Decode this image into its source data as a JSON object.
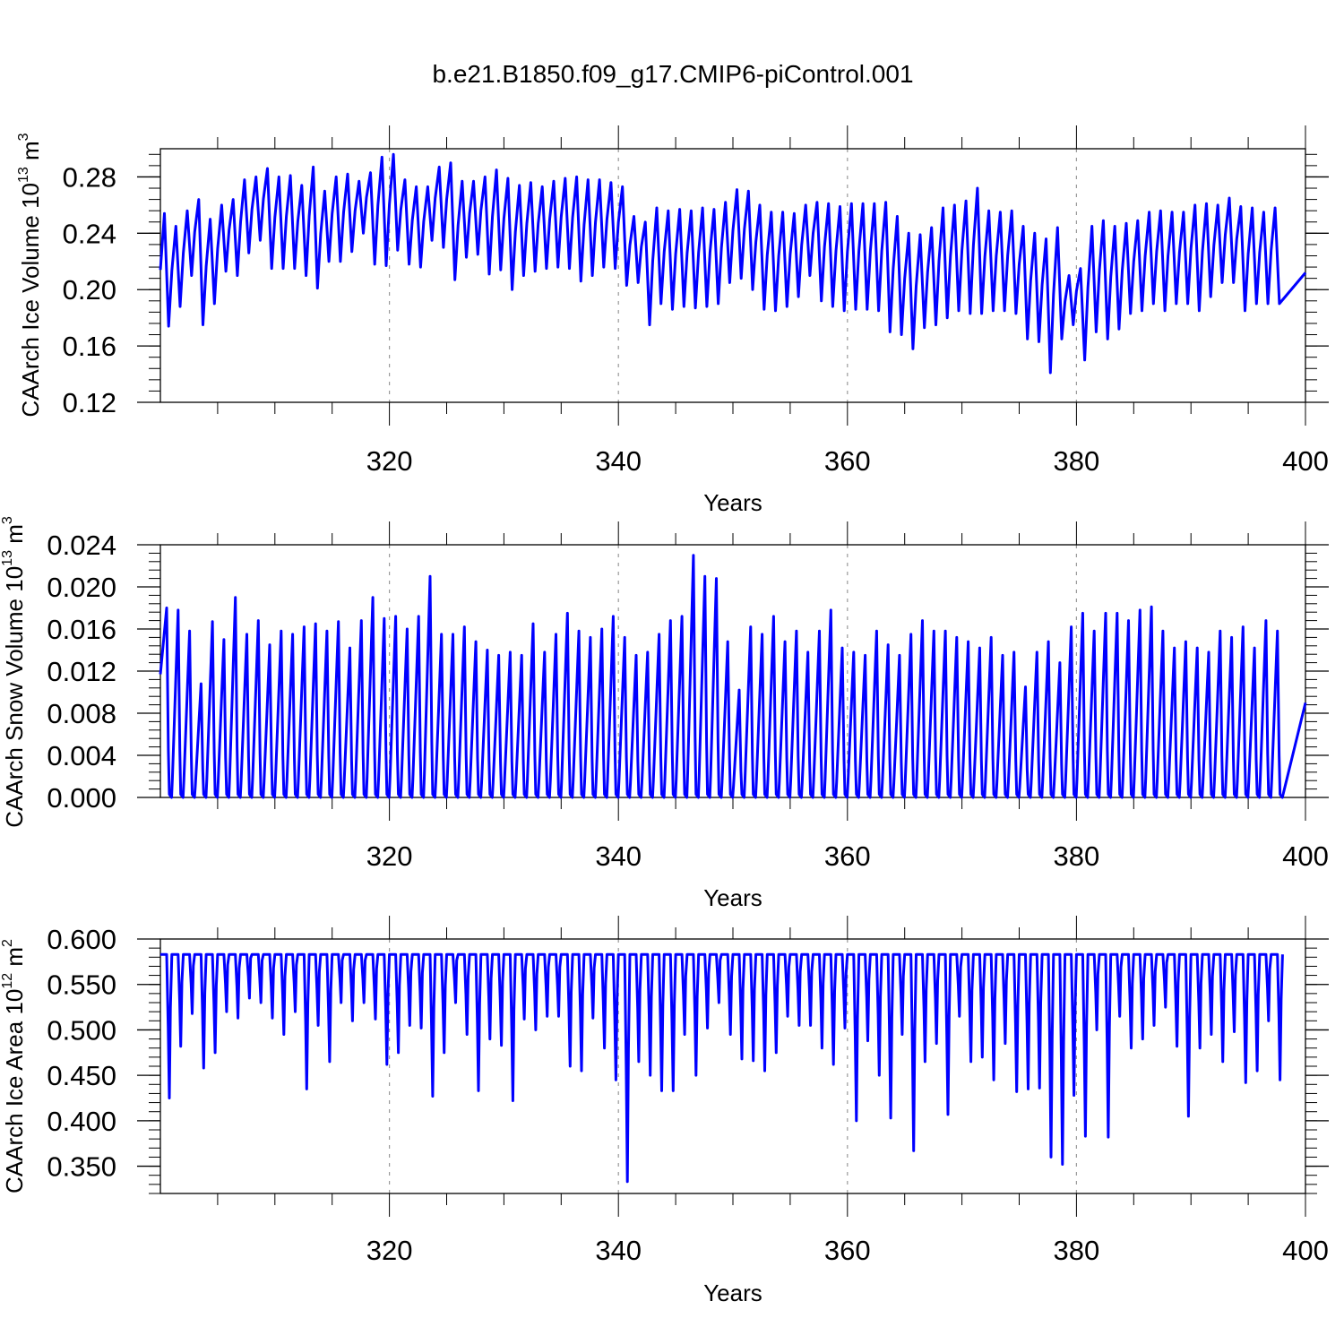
{
  "figure_title": "b.e21.B1850.f09_g17.CMIP6-piControl.001",
  "colors": {
    "line": "#0000ff",
    "axis": "#000000",
    "grid": "#9a9a9a"
  },
  "chart_data": [
    {
      "type": "line",
      "ylabel": {
        "main": "CAArch Ice Volume 10",
        "exponent": "13",
        "unit": " m",
        "unit_exponent": "3"
      },
      "xlabel": "Years",
      "xlim": [
        300,
        400
      ],
      "ylim": [
        0.12,
        0.3
      ],
      "x_ticks": [
        "320",
        "340",
        "360",
        "380",
        "400"
      ],
      "x_tick_values": [
        320,
        340,
        360,
        380,
        400
      ],
      "y_ticks": [
        "0.12",
        "0.16",
        "0.20",
        "0.24",
        "0.28"
      ],
      "y_tick_values": [
        0.12,
        0.16,
        0.2,
        0.24,
        0.28
      ],
      "grid": "dashed vertical at 320, 340, 360, 380",
      "series": [
        {
          "x_start": 300,
          "x_step": 1,
          "peaks": [
            0.254,
            0.245,
            0.256,
            0.264,
            0.25,
            0.26,
            0.264,
            0.278,
            0.28,
            0.286,
            0.28,
            0.281,
            0.274,
            0.287,
            0.27,
            0.28,
            0.282,
            0.277,
            0.283,
            0.294,
            0.296,
            0.278,
            0.273,
            0.273,
            0.287,
            0.29,
            0.277,
            0.277,
            0.28,
            0.285,
            0.279,
            0.274,
            0.276,
            0.273,
            0.277,
            0.279,
            0.28,
            0.278,
            0.278,
            0.276,
            0.273,
            0.252,
            0.248,
            0.258,
            0.256,
            0.257,
            0.256,
            0.258,
            0.257,
            0.262,
            0.271,
            0.27,
            0.26,
            0.255,
            0.255,
            0.254,
            0.26,
            0.262,
            0.261,
            0.259,
            0.261,
            0.261,
            0.261,
            0.262,
            0.252,
            0.24,
            0.239,
            0.244,
            0.258,
            0.26,
            0.263,
            0.272,
            0.256,
            0.255,
            0.256,
            0.245,
            0.24,
            0.236,
            0.244,
            0.21,
            0.215,
            0.245,
            0.249,
            0.245,
            0.247,
            0.249,
            0.255,
            0.256,
            0.255,
            0.255,
            0.26,
            0.261,
            0.26,
            0.265,
            0.259,
            0.258,
            0.255,
            0.258
          ],
          "troughs": [
            0.174,
            0.188,
            0.21,
            0.175,
            0.19,
            0.213,
            0.21,
            0.226,
            0.235,
            0.215,
            0.215,
            0.215,
            0.21,
            0.201,
            0.22,
            0.22,
            0.227,
            0.24,
            0.218,
            0.217,
            0.228,
            0.218,
            0.216,
            0.235,
            0.23,
            0.207,
            0.223,
            0.225,
            0.211,
            0.214,
            0.2,
            0.21,
            0.213,
            0.215,
            0.216,
            0.215,
            0.206,
            0.21,
            0.216,
            0.215,
            0.203,
            0.205,
            0.175,
            0.19,
            0.186,
            0.188,
            0.187,
            0.188,
            0.19,
            0.205,
            0.208,
            0.2,
            0.186,
            0.185,
            0.188,
            0.195,
            0.21,
            0.192,
            0.188,
            0.185,
            0.186,
            0.186,
            0.185,
            0.17,
            0.168,
            0.158,
            0.173,
            0.175,
            0.18,
            0.185,
            0.183,
            0.183,
            0.185,
            0.185,
            0.183,
            0.165,
            0.163,
            0.141,
            0.165,
            0.175,
            0.15,
            0.17,
            0.165,
            0.172,
            0.183,
            0.185,
            0.19,
            0.185,
            0.19,
            0.19,
            0.185,
            0.195,
            0.205,
            0.205,
            0.185,
            0.19,
            0.19,
            0.19
          ]
        }
      ]
    },
    {
      "type": "line",
      "ylabel": {
        "main": "CAArch Snow Volume 10",
        "exponent": "13",
        "unit": " m",
        "unit_exponent": "3"
      },
      "xlabel": "Years",
      "xlim": [
        300,
        400
      ],
      "ylim": [
        0.0,
        0.024
      ],
      "x_ticks": [
        "320",
        "340",
        "360",
        "380",
        "400"
      ],
      "x_tick_values": [
        320,
        340,
        360,
        380,
        400
      ],
      "y_ticks": [
        "0.000",
        "0.004",
        "0.008",
        "0.012",
        "0.016",
        "0.020",
        "0.024"
      ],
      "y_tick_values": [
        0.0,
        0.004,
        0.008,
        0.012,
        0.016,
        0.02,
        0.024
      ],
      "grid": "dashed vertical at 320, 340, 360, 380",
      "series": [
        {
          "x_start": 300,
          "x_step": 1,
          "peaks": [
            0.018,
            0.0178,
            0.0158,
            0.0108,
            0.0167,
            0.015,
            0.019,
            0.0155,
            0.0168,
            0.0145,
            0.0158,
            0.0155,
            0.0162,
            0.0165,
            0.0158,
            0.0167,
            0.0142,
            0.0168,
            0.019,
            0.017,
            0.0172,
            0.016,
            0.0172,
            0.021,
            0.0155,
            0.0155,
            0.0162,
            0.0148,
            0.014,
            0.0135,
            0.0138,
            0.0135,
            0.0165,
            0.0138,
            0.0155,
            0.0175,
            0.0158,
            0.0152,
            0.016,
            0.0172,
            0.0152,
            0.0135,
            0.0138,
            0.0155,
            0.0168,
            0.0172,
            0.023,
            0.021,
            0.0208,
            0.0148,
            0.0102,
            0.0162,
            0.0155,
            0.0172,
            0.0148,
            0.0158,
            0.0138,
            0.0158,
            0.0178,
            0.0142,
            0.0138,
            0.0135,
            0.0158,
            0.0145,
            0.0135,
            0.0155,
            0.0168,
            0.0158,
            0.0158,
            0.0152,
            0.0148,
            0.0142,
            0.0152,
            0.0135,
            0.0138,
            0.0105,
            0.0138,
            0.0148,
            0.0128,
            0.0162,
            0.0175,
            0.0158,
            0.0175,
            0.0175,
            0.0168,
            0.0178,
            0.0181,
            0.0158,
            0.0142,
            0.0148,
            0.0142,
            0.0138,
            0.0158,
            0.0152,
            0.0162,
            0.0142,
            0.0168,
            0.0158
          ]
        }
      ]
    },
    {
      "type": "line",
      "ylabel": {
        "main": "CAArch Ice Area 10",
        "exponent": "12",
        "unit": " m",
        "unit_exponent": "2"
      },
      "xlabel": "Years",
      "xlim": [
        300,
        400
      ],
      "ylim": [
        0.32,
        0.6
      ],
      "x_ticks": [
        "320",
        "340",
        "360",
        "380",
        "400"
      ],
      "x_tick_values": [
        320,
        340,
        360,
        380,
        400
      ],
      "y_ticks": [
        "0.350",
        "0.400",
        "0.450",
        "0.500",
        "0.550",
        "0.600"
      ],
      "y_tick_values": [
        0.35,
        0.4,
        0.45,
        0.5,
        0.55,
        0.6
      ],
      "grid": "dashed vertical at 320, 340, 360, 380",
      "series": [
        {
          "x_start": 300,
          "x_step": 1,
          "plateau": 0.583,
          "minima": [
            0.425,
            0.482,
            0.518,
            0.458,
            0.475,
            0.52,
            0.513,
            0.535,
            0.53,
            0.513,
            0.495,
            0.52,
            0.435,
            0.505,
            0.465,
            0.53,
            0.51,
            0.53,
            0.512,
            0.462,
            0.475,
            0.505,
            0.502,
            0.427,
            0.475,
            0.53,
            0.495,
            0.433,
            0.49,
            0.483,
            0.422,
            0.512,
            0.5,
            0.515,
            0.515,
            0.46,
            0.455,
            0.513,
            0.48,
            0.445,
            0.333,
            0.465,
            0.45,
            0.433,
            0.433,
            0.495,
            0.45,
            0.502,
            0.53,
            0.495,
            0.468,
            0.466,
            0.455,
            0.475,
            0.515,
            0.505,
            0.505,
            0.48,
            0.462,
            0.502,
            0.4,
            0.488,
            0.45,
            0.403,
            0.495,
            0.367,
            0.465,
            0.485,
            0.407,
            0.515,
            0.465,
            0.47,
            0.445,
            0.485,
            0.432,
            0.435,
            0.436,
            0.36,
            0.352,
            0.428,
            0.383,
            0.5,
            0.382,
            0.515,
            0.48,
            0.49,
            0.505,
            0.525,
            0.482,
            0.405,
            0.48,
            0.495,
            0.465,
            0.498,
            0.442,
            0.455,
            0.51,
            0.445
          ]
        }
      ]
    }
  ]
}
